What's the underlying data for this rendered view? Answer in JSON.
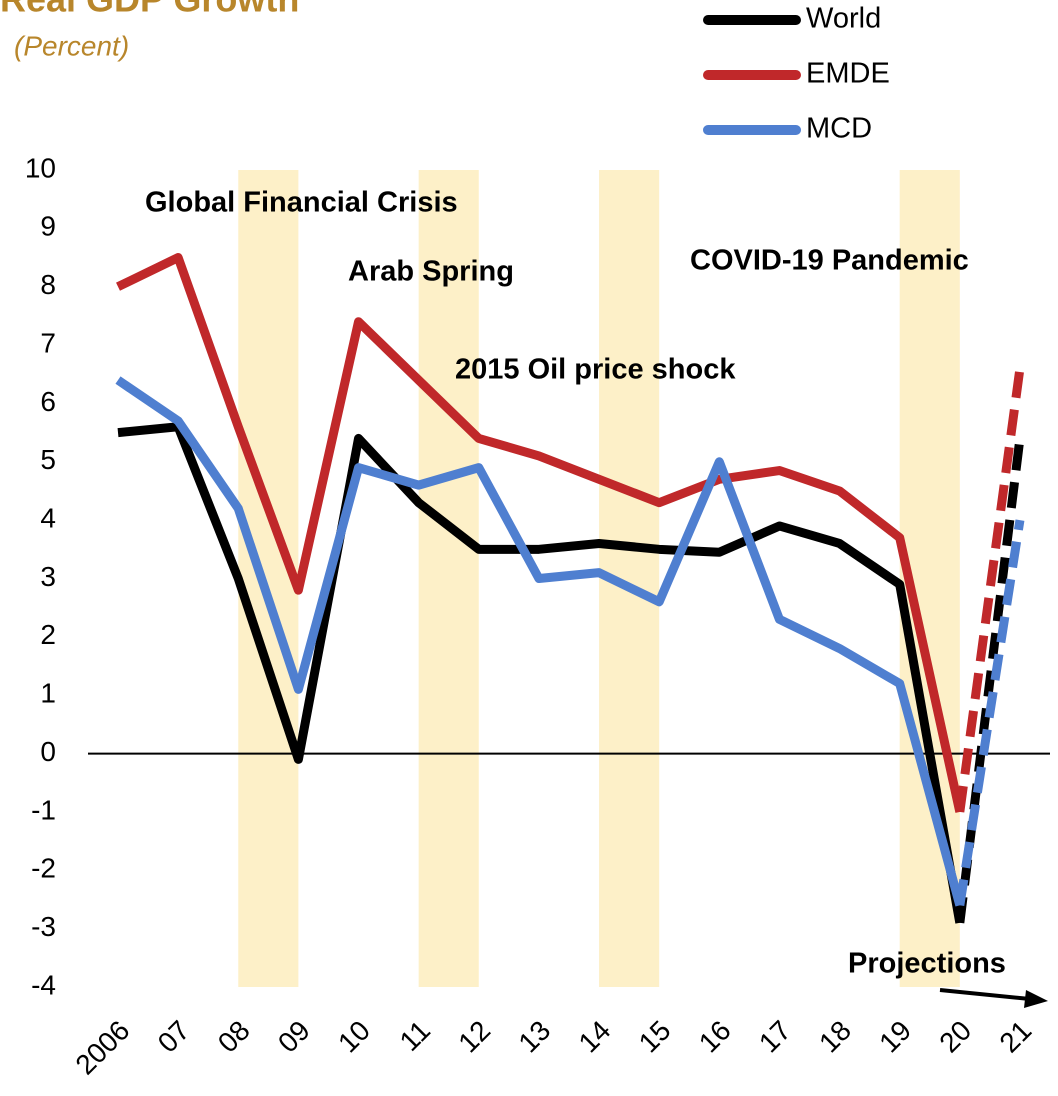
{
  "chart_data": {
    "type": "line",
    "title": "Real GDP Growth",
    "subtitle": "(Percent)",
    "categories": [
      "2006",
      "07",
      "08",
      "09",
      "10",
      "11",
      "12",
      "13",
      "14",
      "15",
      "16",
      "17",
      "18",
      "19",
      "20",
      "21"
    ],
    "series": [
      {
        "name": "World",
        "color": "#000000",
        "values": [
          5.5,
          5.6,
          3.0,
          -0.1,
          5.4,
          4.3,
          3.5,
          3.5,
          3.6,
          3.5,
          3.45,
          3.9,
          3.6,
          2.9,
          -2.9,
          5.4
        ]
      },
      {
        "name": "EMDE",
        "color": "#c0282a",
        "values": [
          8.0,
          8.5,
          5.6,
          2.8,
          7.4,
          6.4,
          5.4,
          5.1,
          4.7,
          4.3,
          4.7,
          4.85,
          4.5,
          3.7,
          -1.0,
          6.6
        ]
      },
      {
        "name": "MCD",
        "color": "#4f7fd0",
        "values": [
          6.4,
          5.7,
          4.2,
          1.1,
          4.9,
          4.6,
          4.9,
          3.0,
          3.1,
          2.6,
          5.0,
          2.3,
          1.8,
          1.2,
          -2.6,
          4.0
        ]
      }
    ],
    "projection_start": "20",
    "shaded": [
      [
        "08",
        "09"
      ],
      [
        "11",
        "12"
      ],
      [
        "14",
        "15"
      ],
      [
        "19",
        "20"
      ]
    ],
    "shade_color": "#fdf0c8",
    "annotations": [
      "Global Financial Crisis",
      "Arab Spring",
      "2015 Oil price shock",
      "COVID-19 Pandemic",
      "Projections"
    ],
    "ylim": [
      -4,
      10
    ],
    "yticks": [
      10,
      9,
      8,
      7,
      6,
      5,
      4,
      3,
      2,
      1,
      0,
      -1,
      -2,
      -3,
      -4
    ]
  }
}
